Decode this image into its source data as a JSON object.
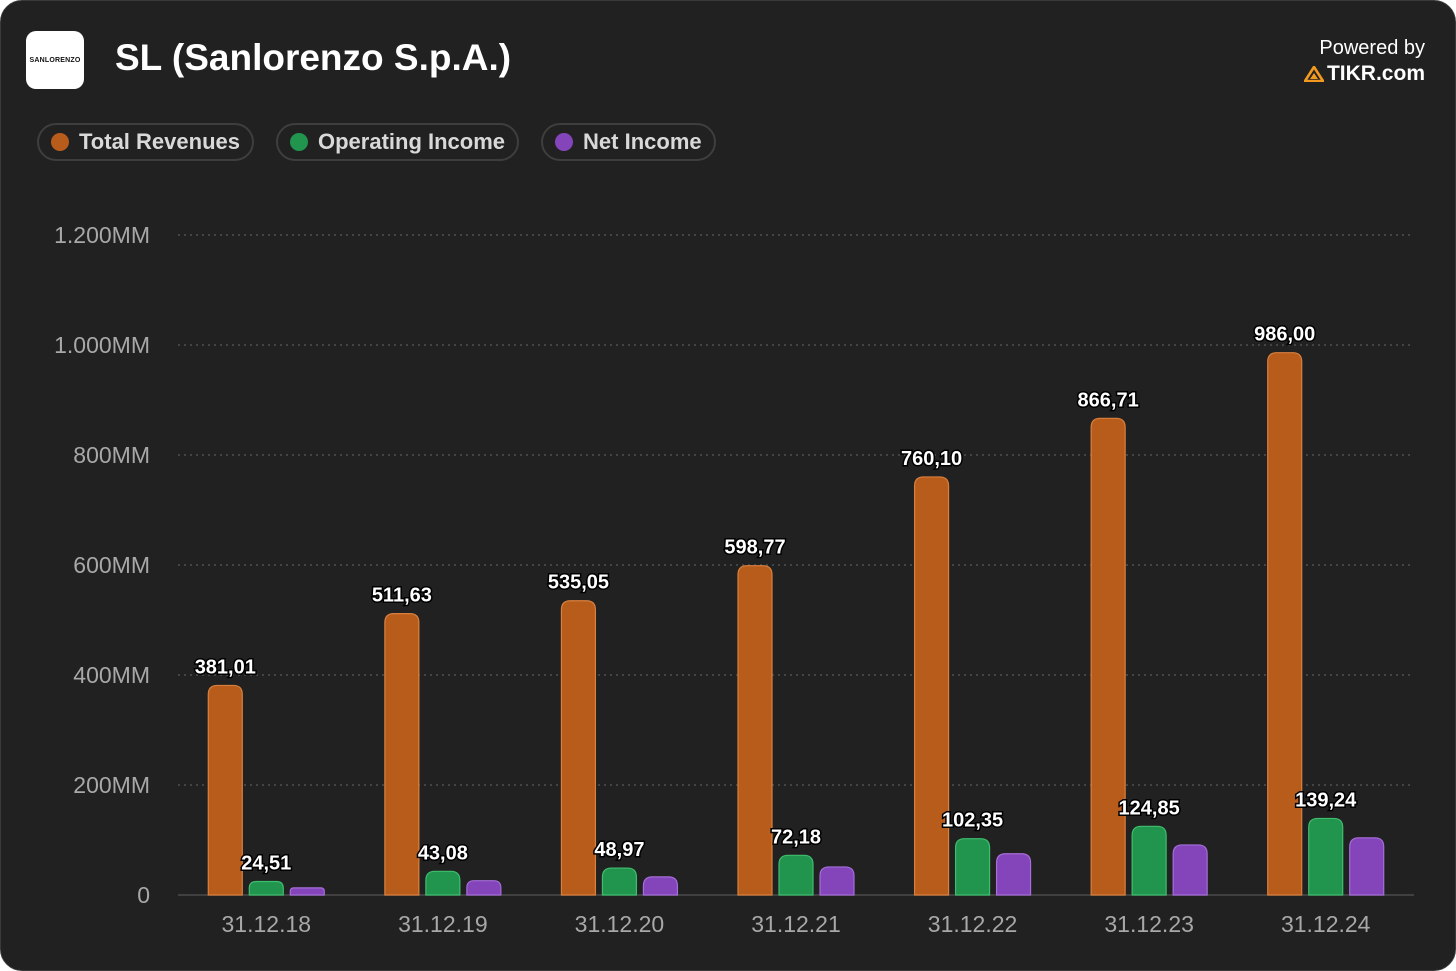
{
  "header": {
    "logo_text": "SANLORENZO",
    "title": "SL (Sanlorenzo S.p.A.)",
    "powered_by": "Powered by",
    "brand": "TIKR.com"
  },
  "colors": {
    "total_revenues": "#b85c1c",
    "operating_income": "#21944e",
    "net_income": "#8445bb"
  },
  "chart_data": {
    "type": "bar",
    "title": "SL (Sanlorenzo S.p.A.)",
    "xlabel": "",
    "ylabel": "",
    "ylim": [
      0,
      1200
    ],
    "yticks": [
      0,
      200,
      400,
      600,
      800,
      1000,
      1200
    ],
    "ytick_labels": [
      "0",
      "200MM",
      "400MM",
      "600MM",
      "800MM",
      "1.000MM",
      "1.200MM"
    ],
    "grid": true,
    "legend": "top-left",
    "categories": [
      "31.12.18",
      "31.12.19",
      "31.12.20",
      "31.12.21",
      "31.12.22",
      "31.12.23",
      "31.12.24"
    ],
    "series": [
      {
        "name": "Total Revenues",
        "values": [
          381.01,
          511.63,
          535.05,
          598.77,
          760.1,
          866.71,
          986.0
        ],
        "labels": [
          "381,01",
          "511,63",
          "535,05",
          "598,77",
          "760,10",
          "866,71",
          "986,00"
        ]
      },
      {
        "name": "Operating Income",
        "values": [
          24.51,
          43.08,
          48.97,
          72.18,
          102.35,
          124.85,
          139.24
        ],
        "labels": [
          "24,51",
          "43,08",
          "48,97",
          "72,18",
          "102,35",
          "124,85",
          "139,24"
        ]
      },
      {
        "name": "Net Income",
        "values": [
          13,
          26,
          33,
          51,
          75,
          91,
          104
        ],
        "labels": null
      }
    ]
  }
}
